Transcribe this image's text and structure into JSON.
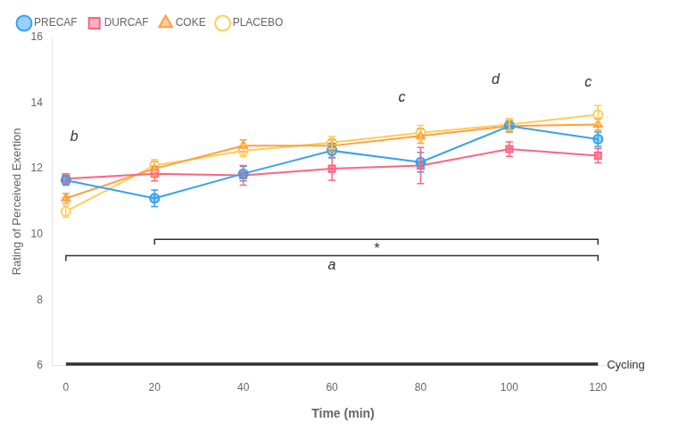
{
  "chart_data": {
    "type": "line",
    "x": [
      0,
      20,
      40,
      60,
      80,
      100,
      120
    ],
    "xlabel": "Time (min)",
    "ylabel": "Rating of Perceived Exertion",
    "xlim": [
      -3,
      128
    ],
    "xticks": [
      0,
      20,
      40,
      60,
      80,
      100,
      120
    ],
    "ylim": [
      6,
      16
    ],
    "yticks": [
      6,
      8,
      10,
      12,
      14,
      16
    ],
    "grid": false,
    "legend": "upper left",
    "series": [
      {
        "name": "PRECAF",
        "marker": "circle",
        "values": [
          11.65,
          11.1,
          11.85,
          12.55,
          12.2,
          13.3,
          12.9
        ],
        "error": [
          0.15,
          0.25,
          0.22,
          0.22,
          0.3,
          0.18,
          0.22
        ]
      },
      {
        "name": "DURCAF",
        "marker": "square",
        "values": [
          11.7,
          11.85,
          11.8,
          12.0,
          12.1,
          12.6,
          12.4
        ],
        "error": [
          0.15,
          0.22,
          0.3,
          0.35,
          0.55,
          0.22,
          0.22
        ]
      },
      {
        "name": "COKE",
        "marker": "triangle",
        "values": [
          11.1,
          12.0,
          12.7,
          12.7,
          13.0,
          13.3,
          13.35
        ],
        "error": [
          0.15,
          0.22,
          0.18,
          0.18,
          0.22,
          0.18,
          0.18
        ]
      },
      {
        "name": "PLACEBO",
        "marker": "open_circle",
        "values": [
          10.7,
          12.1,
          12.55,
          12.8,
          13.1,
          13.35,
          13.65
        ],
        "error": [
          0.18,
          0.18,
          0.18,
          0.18,
          0.22,
          0.18,
          0.28
        ]
      }
    ],
    "lines": [
      {
        "x": [
          0,
          120
        ],
        "y": 6.0,
        "label": "Cycling",
        "label_x": 122
      }
    ],
    "brackets": [
      {
        "x": [
          0,
          120
        ],
        "y": 9.35,
        "text": "a"
      },
      {
        "x": [
          20,
          120
        ],
        "y": 9.85,
        "text": "*"
      }
    ],
    "annotations": [
      {
        "text": "b",
        "x": 1,
        "y": 12.75
      },
      {
        "text": "c",
        "x": 75,
        "y": 13.95
      },
      {
        "text": "d",
        "x": 96,
        "y": 14.5
      },
      {
        "text": "c",
        "x": 117,
        "y": 14.4
      }
    ]
  }
}
